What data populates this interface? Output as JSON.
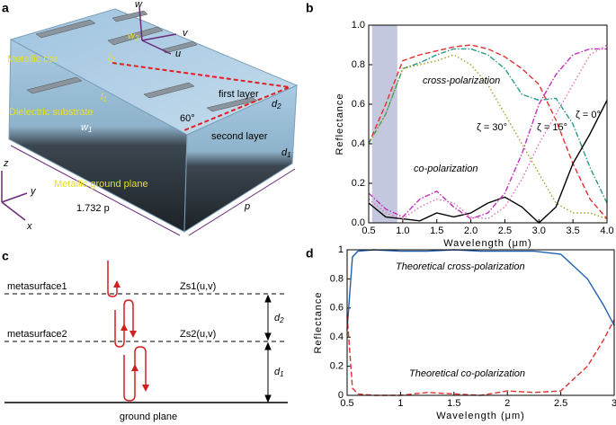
{
  "panel_a": {
    "panel": "a",
    "labels": [
      {
        "text": "Metallic bar"
      },
      {
        "text": "Dielectric substrate"
      },
      {
        "text": "Metallic ground plane"
      },
      {
        "text": "first layer"
      },
      {
        "text": "second layer"
      },
      {
        "text": "60°"
      },
      {
        "text": "w"
      },
      {
        "text": "v"
      },
      {
        "text": "u"
      },
      {
        "text": "w",
        "sub": "2"
      },
      {
        "text": "l",
        "sub": "2"
      },
      {
        "text": "l",
        "sub": "1"
      },
      {
        "text": "w",
        "sub": "1"
      },
      {
        "text": "d",
        "sub": "2"
      },
      {
        "text": "d",
        "sub": "1"
      },
      {
        "text": "z"
      },
      {
        "text": "y"
      },
      {
        "text": "x"
      },
      {
        "text": "1.732 p"
      },
      {
        "text": "p"
      }
    ]
  },
  "panel_c": {
    "panel": "c",
    "layer1": "metasurface1",
    "impedance1": "Zs1(u,v)",
    "layer2": "metasurface2",
    "impedance2": "Zs2(u,v)",
    "d2": {
      "text": "d",
      "sub": "2"
    },
    "d1": {
      "text": "d",
      "sub": "1"
    },
    "ground": "ground plane"
  },
  "chart_data": [
    {
      "type": "line",
      "panel": "b",
      "xlabel": "Wavelength (μm)",
      "ylabel": "Reflectance",
      "x": [
        0.5,
        0.75,
        1.0,
        1.25,
        1.5,
        1.75,
        2.0,
        2.25,
        2.5,
        2.75,
        3.0,
        3.25,
        3.5,
        3.75,
        4.0
      ],
      "xlim": [
        0.5,
        4.0
      ],
      "xticks": [
        0.5,
        {
          "value": 1,
          "label": "1.0"
        },
        1.5,
        {
          "value": 2,
          "label": "2.0"
        },
        2.5,
        {
          "value": 3,
          "label": "3.0"
        },
        3.5,
        {
          "value": 4,
          "label": "4.0"
        }
      ],
      "ylim": [
        0,
        1
      ],
      "yticks": [
        {
          "value": 0,
          "label": "0.0"
        },
        0.2,
        0.4,
        0.6,
        0.8,
        {
          "value": 1,
          "label": "1.0"
        }
      ],
      "shaded_x": [
        0.55,
        0.92
      ],
      "series": [
        {
          "color": "#e03030",
          "dash": "dashed",
          "values": [
            0.4,
            0.6,
            0.82,
            0.85,
            0.87,
            0.89,
            0.9,
            0.88,
            0.84,
            0.78,
            0.7,
            0.52,
            0.3,
            0.12,
            0.02
          ]
        },
        {
          "color": "#2a9a8a",
          "dash": "dashdot",
          "values": [
            0.4,
            0.55,
            0.78,
            0.81,
            0.85,
            0.88,
            0.88,
            0.85,
            0.78,
            0.65,
            0.62,
            0.63,
            0.5,
            0.28,
            0.1
          ]
        },
        {
          "color": "#a0a020",
          "dash": "dotted",
          "values": [
            0.4,
            0.55,
            0.78,
            0.8,
            0.82,
            0.85,
            0.8,
            0.7,
            0.55,
            0.4,
            0.25,
            0.1,
            0.05,
            0.05,
            0.02
          ]
        },
        {
          "color": "#000000",
          "dash": "solid",
          "values": [
            0.1,
            0.03,
            0.02,
            0.01,
            0.05,
            0.03,
            0.05,
            0.1,
            0.13,
            0.08,
            0.0,
            0.08,
            0.3,
            0.45,
            0.62
          ]
        },
        {
          "color": "#c030c0",
          "dash": "dashdot",
          "values": [
            0.15,
            0.07,
            0.03,
            0.12,
            0.16,
            0.08,
            0.02,
            0.05,
            0.15,
            0.35,
            0.6,
            0.75,
            0.85,
            0.88,
            0.88
          ]
        },
        {
          "color": "#e070b0",
          "dash": "dotted",
          "values": [
            0.12,
            0.05,
            0.02,
            0.08,
            0.12,
            0.1,
            0.03,
            0.02,
            0.08,
            0.22,
            0.4,
            0.55,
            0.7,
            0.85,
            0.9
          ]
        }
      ],
      "annotations": [
        "cross-polarization",
        "co-polarization",
        "ζ = 30°",
        "ζ = 15°",
        "ζ = 0°"
      ]
    },
    {
      "type": "line",
      "panel": "d",
      "xlabel": "Wavelength (μm)",
      "ylabel": "Reflectance",
      "x": [
        0.5,
        0.55,
        0.6,
        0.75,
        1,
        1.25,
        1.5,
        1.75,
        2,
        2.25,
        2.5,
        2.75,
        2.9,
        3
      ],
      "xlim": [
        0.5,
        3
      ],
      "xticks": [
        0.5,
        1,
        1.5,
        2,
        2.5,
        3
      ],
      "ylim": [
        0,
        1
      ],
      "yticks": [
        0,
        0.2,
        0.4,
        0.6,
        0.8,
        1
      ],
      "series": [
        {
          "color": "#2060b0",
          "dash": "solid",
          "values": [
            0.45,
            0.95,
            0.99,
            1.0,
            0.99,
            0.99,
            1.0,
            0.99,
            0.99,
            0.99,
            0.97,
            0.8,
            0.62,
            0.48
          ]
        },
        {
          "color": "#e03030",
          "dash": "dashed",
          "values": [
            0.55,
            0.05,
            0.01,
            0,
            0,
            0.02,
            0.01,
            0,
            0.03,
            0.02,
            0.03,
            0.2,
            0.38,
            0.52
          ]
        }
      ],
      "annotations": [
        "Theoretical cross-polarization",
        "Theoretical co-polarization"
      ]
    }
  ]
}
